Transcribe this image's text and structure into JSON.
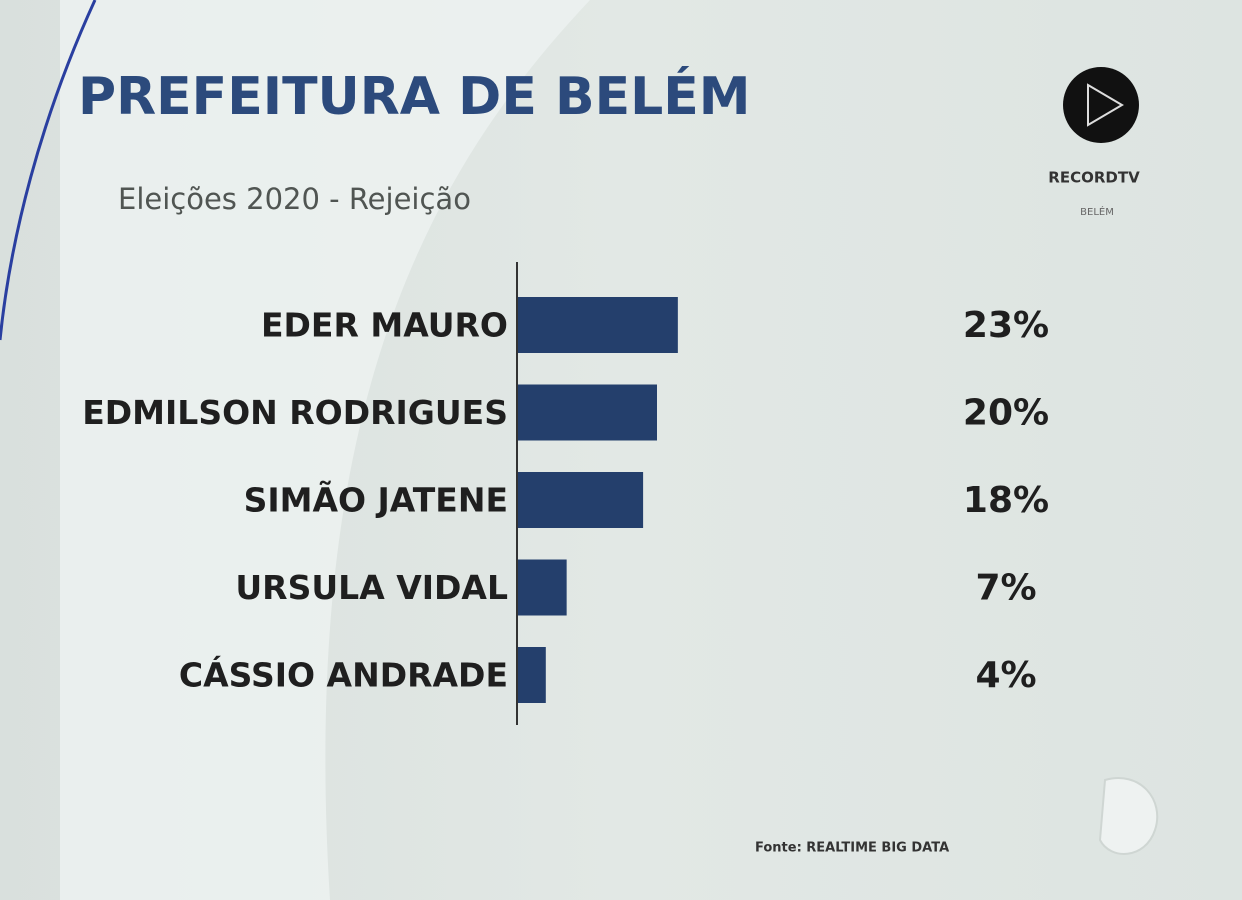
{
  "chart_data": {
    "type": "bar",
    "orientation": "horizontal",
    "title": "PREFEITURA DE BELÉM",
    "subtitle": "Eleições 2020 - Rejeição",
    "categories": [
      "EDER MAURO",
      "EDMILSON RODRIGUES",
      "SIMÃO JATENE",
      "URSULA VIDAL",
      "CÁSSIO ANDRADE"
    ],
    "values": [
      23,
      20,
      18,
      7,
      4
    ],
    "value_labels": [
      "23%",
      "20%",
      "18%",
      "7%",
      "4%"
    ],
    "color": "#243f6c",
    "source": "Fonte: REALTIME BIG DATA",
    "logo_text": "RECORDTV",
    "logo_subtext": "BELÉM"
  }
}
